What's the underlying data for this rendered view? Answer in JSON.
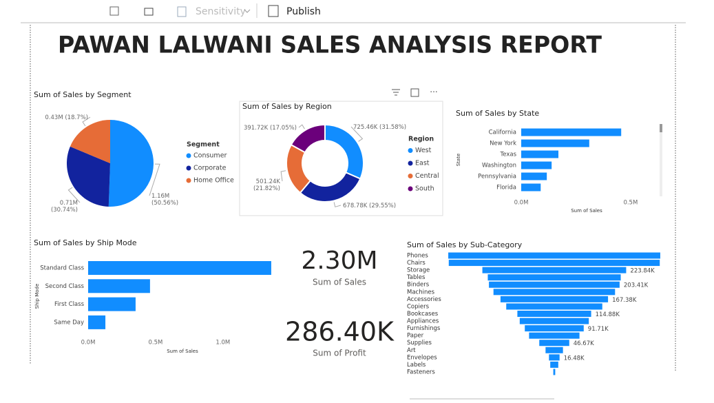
{
  "toolbar": {
    "items": [
      "Sensitivity",
      "Publish"
    ]
  },
  "title": "PAWAN LALWANI SALES ANALYSIS REPORT",
  "chart_data": [
    {
      "type": "pie",
      "title": "Sum of Sales by Segment",
      "legend_title": "Segment",
      "categories": [
        "Consumer",
        "Corporate",
        "Home Office"
      ],
      "values": [
        50.56,
        30.74,
        18.7
      ],
      "value_labels": [
        [
          "1.16M",
          "(50.56%)"
        ],
        [
          "0.71M",
          "(30.74%)"
        ],
        [
          "0.43M (18.7%)"
        ]
      ],
      "colors": [
        "#118dff",
        "#12239e",
        "#e66c37"
      ]
    },
    {
      "type": "donut",
      "title": "Sum of Sales by Region",
      "legend_title": "Region",
      "categories": [
        "West",
        "East",
        "Central",
        "South"
      ],
      "values": [
        31.58,
        29.55,
        21.82,
        17.05
      ],
      "value_labels": [
        [
          "725.46K (31.58%)"
        ],
        [
          "678.78K (29.55%)"
        ],
        [
          "501.24K",
          "(21.82%)"
        ],
        [
          "391.72K (17.05%)"
        ]
      ],
      "colors": [
        "#118dff",
        "#12239e",
        "#e66c37",
        "#6b007b"
      ]
    },
    {
      "type": "bar",
      "title": "Sum of Sales by State",
      "x_label": "Sum of Sales",
      "y_label": "State",
      "categories": [
        "California",
        "New York",
        "Texas",
        "Washington",
        "Pennsylvania",
        "Florida"
      ],
      "values": [
        0.457,
        0.311,
        0.17,
        0.139,
        0.117,
        0.089
      ],
      "xlim": [
        0,
        0.62
      ],
      "xticks": [
        {
          "value": 0,
          "label": "0.0M"
        },
        {
          "value": 0.5,
          "label": "0.5M"
        }
      ],
      "color": "#118dff"
    },
    {
      "type": "bar",
      "title": "Sum of Sales by Ship Mode",
      "x_label": "Sum of Sales",
      "y_label": "Ship Mode",
      "categories": [
        "Standard Class",
        "Second Class",
        "First Class",
        "Same Day"
      ],
      "values": [
        1.358,
        0.459,
        0.352,
        0.128
      ],
      "xlim": [
        0,
        1.44
      ],
      "xticks": [
        {
          "value": 0,
          "label": "0.0M"
        },
        {
          "value": 0.5,
          "label": "0.5M"
        },
        {
          "value": 1,
          "label": "1.0M"
        }
      ],
      "color": "#118dff"
    },
    {
      "type": "funnel",
      "title": "Sum of Sales by Sub-Category",
      "categories": [
        "Phones",
        "Chairs",
        "Storage",
        "Tables",
        "Binders",
        "Machines",
        "Accessories",
        "Copiers",
        "Bookcases",
        "Appliances",
        "Furnishings",
        "Paper",
        "Supplies",
        "Art",
        "Envelopes",
        "Labels",
        "Fasteners"
      ],
      "values": [
        330.01,
        328.45,
        223.84,
        206.97,
        203.41,
        189.24,
        167.38,
        149.53,
        114.88,
        107.53,
        91.71,
        78.48,
        46.67,
        27.12,
        16.48,
        12.49,
        3.02
      ],
      "value_labels": [
        null,
        null,
        "223.84K",
        null,
        "203.41K",
        null,
        "167.38K",
        null,
        "114.88K",
        null,
        "91.71K",
        null,
        "46.67K",
        null,
        "16.48K",
        null,
        null
      ],
      "color": "#118dff"
    }
  ],
  "cards": [
    {
      "value": "2.30M",
      "label": "Sum of Sales"
    },
    {
      "value": "286.40K",
      "label": "Sum of Profit"
    }
  ]
}
